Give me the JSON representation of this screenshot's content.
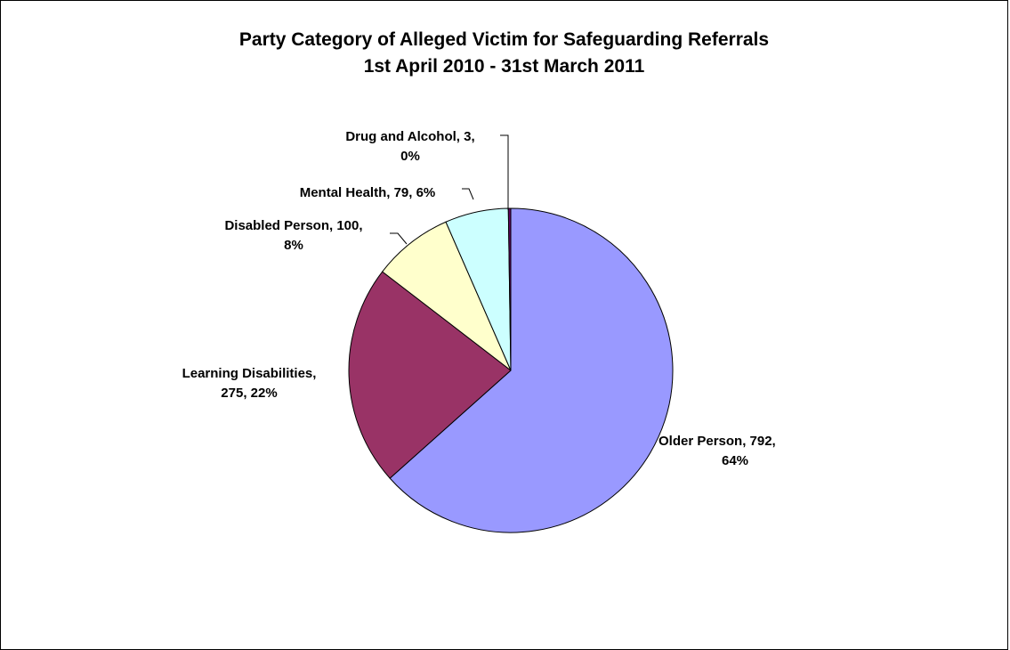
{
  "chart_data": {
    "type": "pie",
    "title": "Party Category of Alleged Victim for Safeguarding Referrals",
    "subtitle": "1st April 2010 - 31st March 2011",
    "slices": [
      {
        "label": "Older Person",
        "value": 792,
        "percent": "64%",
        "color": "#9999ff",
        "label_lines": [
          "Older Person, 792,",
          "64%"
        ]
      },
      {
        "label": "Learning Disabilities",
        "value": 275,
        "percent": "22%",
        "color": "#993366",
        "label_lines": [
          "Learning Disabilities,",
          "275, 22%"
        ]
      },
      {
        "label": "Disabled Person",
        "value": 100,
        "percent": "8%",
        "color": "#ffffcc",
        "label_lines": [
          "Disabled Person, 100,",
          "8%"
        ]
      },
      {
        "label": "Mental Health",
        "value": 79,
        "percent": "6%",
        "color": "#ccffff",
        "label_lines": [
          "Mental Health, 79, 6%"
        ]
      },
      {
        "label": "Drug and Alcohol",
        "value": 3,
        "percent": "0%",
        "color": "#660066",
        "label_lines": [
          "Drug and Alcohol, 3,",
          "0%"
        ]
      }
    ],
    "start_angle": "12 o'clock",
    "direction": "clockwise",
    "legend": "none",
    "data_labels": "category, value, percent"
  }
}
